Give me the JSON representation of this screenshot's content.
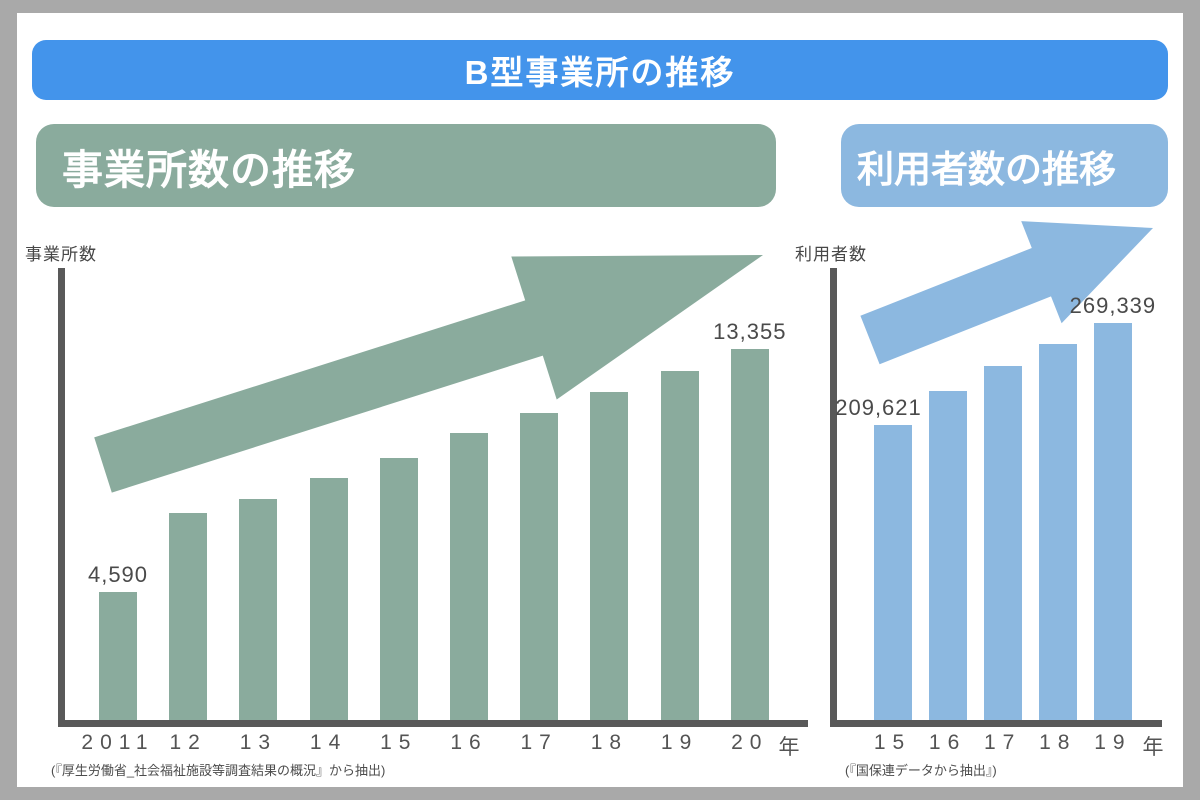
{
  "header": {
    "title": "B型事業所の推移"
  },
  "colors": {
    "title_banner_blue": "#4394EB",
    "green": "#8AAB9D",
    "blue": "#8CB8E0",
    "axis_gray": "#595959",
    "text_gray": "#4C4C4C",
    "frame_gray": "#A9A9A9"
  },
  "chart_data": [
    {
      "type": "bar",
      "title": "事業所数の推移",
      "ylabel": "事業所数",
      "xlabel_suffix": "年",
      "categories": [
        "2011",
        "12",
        "13",
        "14",
        "15",
        "16",
        "17",
        "18",
        "19",
        "20"
      ],
      "values": [
        4590,
        7440,
        7940,
        8720,
        9440,
        10330,
        11050,
        11800,
        12550,
        13355
      ],
      "value_labels": {
        "0": "4,590",
        "9": "13,355"
      },
      "source": "(『厚生労働省_社会福祉施設等調査結果の概況』から抽出)",
      "legend": "none",
      "grid": "off",
      "trend": "increasing",
      "bar_color": "#8AAB9D",
      "ylim": [
        0,
        14000
      ]
    },
    {
      "type": "bar",
      "title": "利用者数の推移",
      "ylabel": "利用者数",
      "xlabel_suffix": "年",
      "categories": [
        "15",
        "16",
        "17",
        "18",
        "19"
      ],
      "values": [
        209621,
        229700,
        243900,
        256900,
        269339
      ],
      "value_labels": {
        "0": "209,621",
        "4": "269,339"
      },
      "source": "(『国保連データから抽出』)",
      "legend": "none",
      "grid": "off",
      "trend": "increasing",
      "bar_color": "#8CB8E0",
      "ylim": [
        0,
        280000
      ]
    }
  ]
}
